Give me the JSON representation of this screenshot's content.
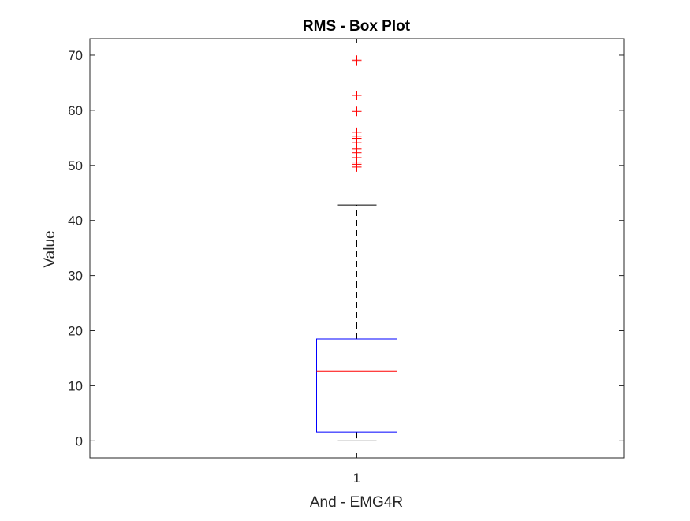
{
  "chart_data": {
    "type": "box",
    "title": "RMS - Box Plot",
    "xlabel": "And - EMG4R",
    "ylabel": "Value",
    "categories": [
      "1"
    ],
    "ylim": [
      -3.1,
      73
    ],
    "yticks": [
      0,
      10,
      20,
      30,
      40,
      50,
      60,
      70
    ],
    "grid": false,
    "box": {
      "min": 0.0,
      "q1": 1.6,
      "median": 12.6,
      "q3": 18.5,
      "max": 42.8
    },
    "outliers": [
      49.7,
      50.2,
      50.6,
      51.4,
      52.3,
      53.0,
      54.1,
      54.9,
      55.3,
      56.0,
      59.8,
      62.7,
      68.9,
      69.1
    ],
    "colors": {
      "box": "#0000ff",
      "median": "#ff0000",
      "whisker": "#000000",
      "outlier": "#ff0000",
      "axis": "#262626"
    }
  }
}
